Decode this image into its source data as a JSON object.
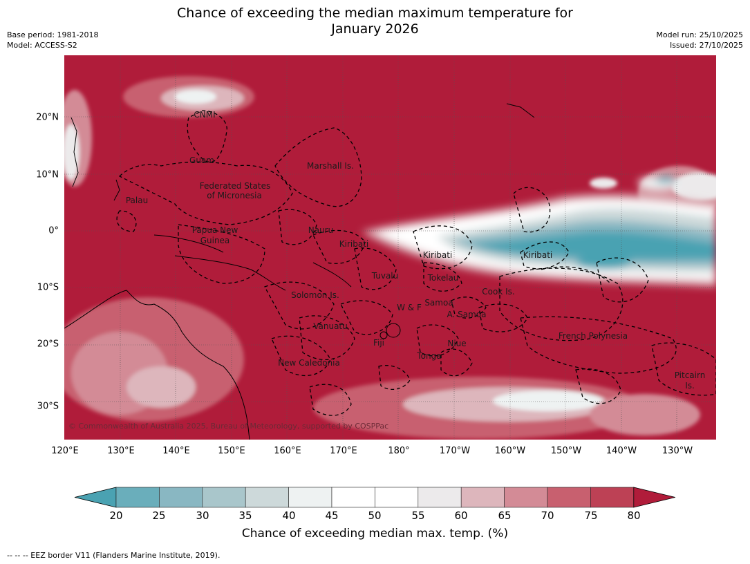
{
  "title_line1": "Chance of exceeding the median maximum temperature for",
  "title_line2": "January 2026",
  "meta_left": {
    "base_period": "Base period: 1981-2018",
    "model": "Model: ACCESS-S2"
  },
  "meta_right": {
    "model_run": "Model run: 25/10/2025",
    "issued": "Issued: 27/10/2025"
  },
  "map": {
    "copyright": "© Commonwealth of Australia 2025, Bureau of Meteorology, supported by COSPPac",
    "lon_ticks": [
      "120°E",
      "130°E",
      "140°E",
      "150°E",
      "160°E",
      "170°E",
      "180°",
      "170°W",
      "160°W",
      "150°W",
      "140°W",
      "130°W"
    ],
    "lat_ticks": [
      "20°N",
      "10°N",
      "0°",
      "10°S",
      "20°S",
      "30°S"
    ],
    "places": [
      {
        "name": "CNMI"
      },
      {
        "name": "Guam"
      },
      {
        "name": "Marshall Is."
      },
      {
        "name": "Federated States"
      },
      {
        "name": "of Micronesia"
      },
      {
        "name": "Palau"
      },
      {
        "name": "Papua New"
      },
      {
        "name": "Guinea"
      },
      {
        "name": "Nauru"
      },
      {
        "name": "Kiribati"
      },
      {
        "name": "Kiribati"
      },
      {
        "name": "Kiribati"
      },
      {
        "name": "Tuvalu"
      },
      {
        "name": "Tokelau"
      },
      {
        "name": "Cook Is."
      },
      {
        "name": "Solomon Is."
      },
      {
        "name": "W & F"
      },
      {
        "name": "Samoa"
      },
      {
        "name": "A. Samoa"
      },
      {
        "name": "Vanuatu"
      },
      {
        "name": "Fiji"
      },
      {
        "name": "Niue"
      },
      {
        "name": "Tonga"
      },
      {
        "name": "French Polynesia"
      },
      {
        "name": "New Caledonia"
      },
      {
        "name": "Pitcairn"
      },
      {
        "name": "Is."
      }
    ],
    "colors": {
      "ocean_high": "#b01c3a",
      "cool": "#4aa2b2",
      "white": "#ffffff"
    }
  },
  "colorbar": {
    "ticks": [
      "20",
      "25",
      "30",
      "35",
      "40",
      "45",
      "50",
      "55",
      "60",
      "65",
      "70",
      "75",
      "80"
    ],
    "colors": [
      "#4aa2b2",
      "#6aaebb",
      "#89b7c2",
      "#a9c6cb",
      "#cdd9da",
      "#eef2f2",
      "#ffffff",
      "#ffffff",
      "#eceaeb",
      "#ddb6bc",
      "#d38b96",
      "#c8606f",
      "#bd4155",
      "#b01c3a"
    ],
    "label": "Chance of exceeding median max. temp. (%)"
  },
  "footnote": "--  --  -- EEZ border V11 (Flanders Marine Institute, 2019)."
}
